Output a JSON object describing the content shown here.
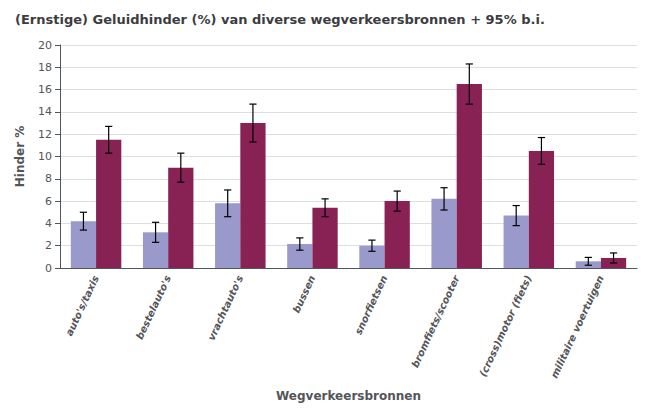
{
  "chart_data": {
    "type": "bar",
    "title": "(Ernstige) Geluidhinder (%) van diverse wegverkeersbronnen + 95% b.i.",
    "xlabel": "Wegverkeersbronnen",
    "ylabel": "Hinder %",
    "categories": [
      "auto's/taxis",
      "bestelauto's",
      "vrachtauto's",
      "bussen",
      "snorfietsen",
      "bromfiets/scooter",
      "(cross)motor (fiets)",
      "militaire voertuigen"
    ],
    "series": [
      {
        "color": "#9999cc",
        "values": [
          4.2,
          3.2,
          5.8,
          2.15,
          2.0,
          6.2,
          4.7,
          0.6
        ],
        "errors": [
          0.8,
          0.9,
          1.2,
          0.55,
          0.5,
          1.0,
          0.9,
          0.35
        ]
      },
      {
        "color": "#882255",
        "values": [
          11.5,
          9.0,
          13.0,
          5.4,
          6.0,
          16.5,
          10.5,
          0.9
        ],
        "errors": [
          1.2,
          1.3,
          1.7,
          0.8,
          0.9,
          1.8,
          1.2,
          0.45
        ]
      }
    ],
    "ylim": [
      0,
      20
    ],
    "yticks": [
      0,
      2,
      4,
      6,
      8,
      10,
      12,
      14,
      16,
      18,
      20
    ],
    "grid": true
  }
}
